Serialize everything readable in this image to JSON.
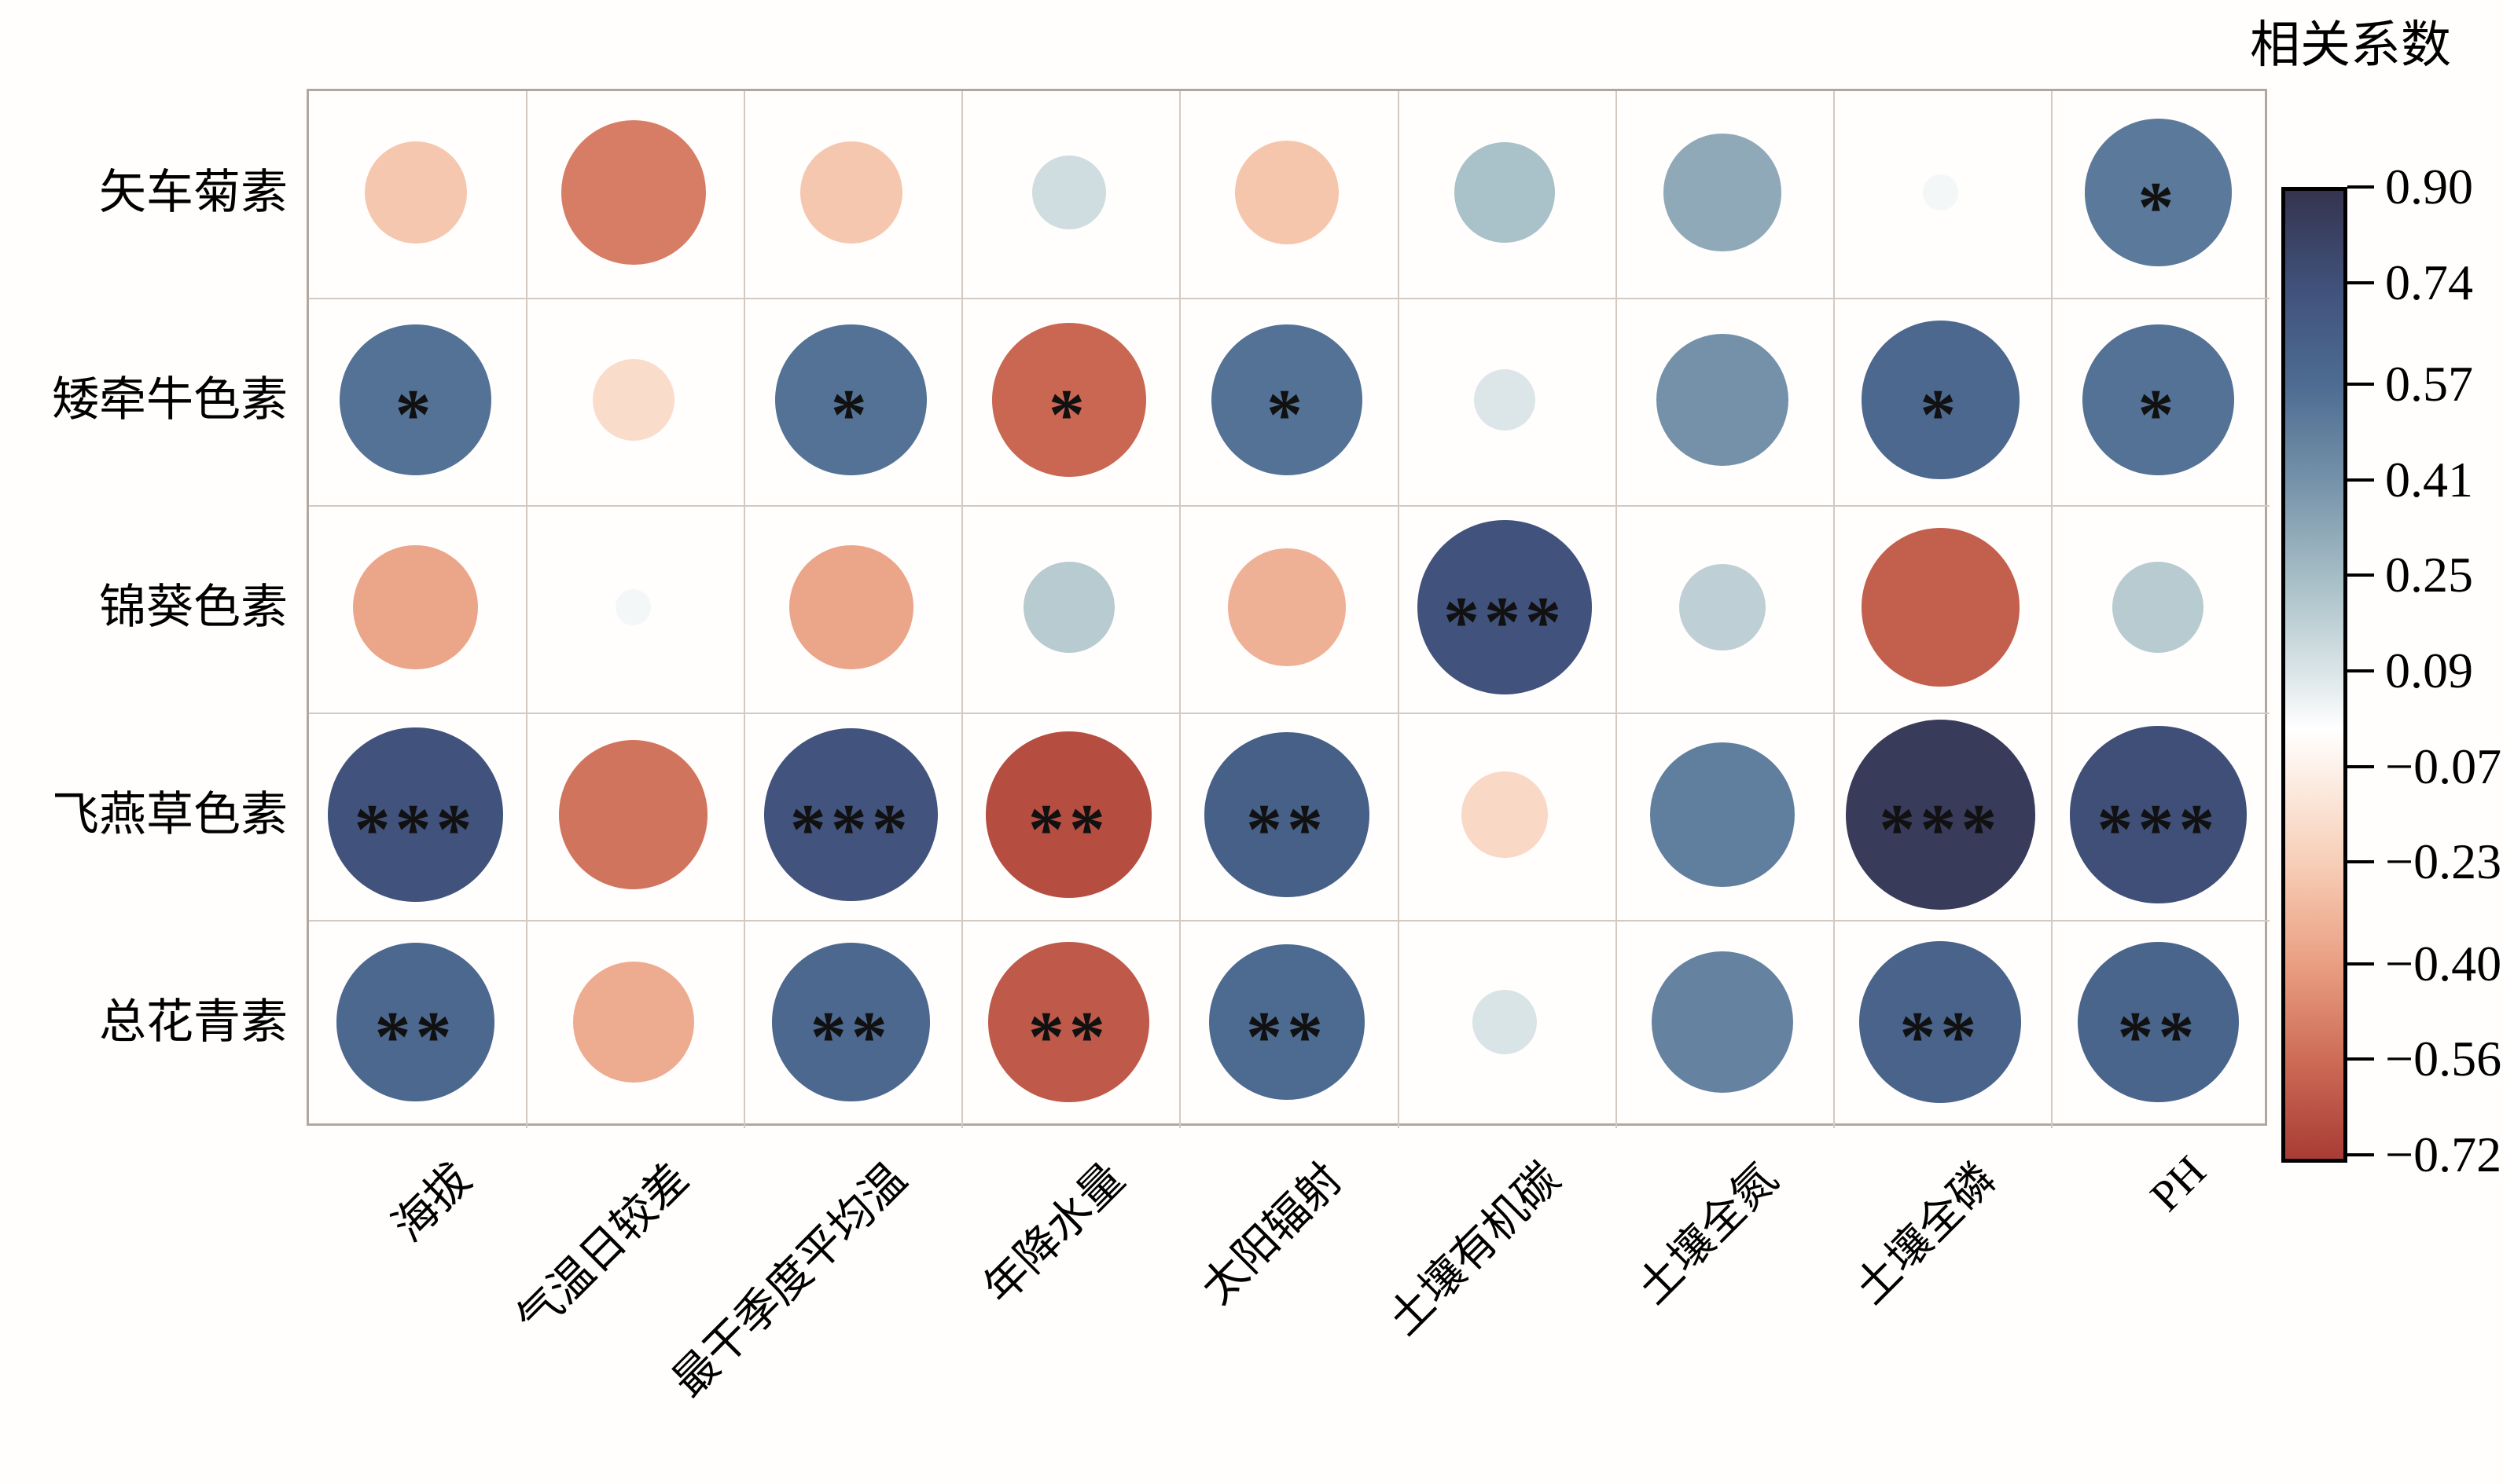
{
  "chart_data": {
    "type": "bubble-correlation-matrix",
    "title": "",
    "rows": [
      "矢车菊素",
      "矮牵牛色素",
      "锦葵色素",
      "飞燕草色素",
      "总花青素"
    ],
    "columns": [
      "海拔",
      "气温日较差",
      "最干季度平均温",
      "年降水量",
      "太阳辐射",
      "土壤有机碳",
      "土壤全氮",
      "土壤全磷",
      "PH"
    ],
    "values": [
      [
        -0.25,
        -0.5,
        -0.25,
        0.13,
        -0.26,
        0.24,
        0.33,
        0.03,
        0.52
      ],
      [
        0.55,
        -0.16,
        0.55,
        -0.57,
        0.55,
        0.09,
        0.42,
        0.6,
        0.55
      ],
      [
        -0.37,
        0.03,
        -0.37,
        0.2,
        -0.33,
        0.73,
        0.18,
        -0.6,
        0.2
      ],
      [
        0.73,
        -0.53,
        0.72,
        -0.66,
        0.65,
        -0.18,
        0.5,
        0.86,
        0.75
      ],
      [
        0.6,
        -0.35,
        0.6,
        -0.62,
        0.58,
        0.1,
        0.48,
        0.63,
        0.62
      ]
    ],
    "significance": [
      [
        "",
        "",
        "",
        "",
        "",
        "",
        "",
        "",
        "*"
      ],
      [
        "*",
        "",
        "*",
        "*",
        "*",
        "",
        "",
        "*",
        "*"
      ],
      [
        "",
        "",
        "",
        "",
        "",
        "***",
        "",
        "",
        ""
      ],
      [
        "***",
        "",
        "***",
        "**",
        "**",
        "",
        "",
        "***",
        "***"
      ],
      [
        "**",
        "",
        "**",
        "**",
        "**",
        "",
        "",
        "**",
        "**"
      ]
    ],
    "size_encoding": "circle area proportional to |r|",
    "grid": true,
    "legend_position": "right",
    "colorbar": {
      "title": "相关系数",
      "max": 0.9,
      "min": -0.72,
      "tick_values": [
        0.9,
        0.74,
        0.57,
        0.41,
        0.25,
        0.09,
        -0.07,
        -0.23,
        -0.4,
        -0.56,
        -0.72
      ],
      "tick_labels": [
        "0.90",
        "0.74",
        "0.57",
        "0.41",
        "0.25",
        "0.09",
        "−0.07",
        "−0.23",
        "−0.40",
        "−0.56",
        "−0.72"
      ],
      "gradient_stops": [
        {
          "value": 0.9,
          "color": "#35344e"
        },
        {
          "value": 0.74,
          "color": "#40517b"
        },
        {
          "value": 0.57,
          "color": "#4e6d92"
        },
        {
          "value": 0.41,
          "color": "#7793aa"
        },
        {
          "value": 0.25,
          "color": "#a6bec6"
        },
        {
          "value": 0.09,
          "color": "#dce6e9"
        },
        {
          "value": 0.0,
          "color": "#ffffff"
        },
        {
          "value": -0.07,
          "color": "#fdf0e8"
        },
        {
          "value": -0.23,
          "color": "#f7cdb5"
        },
        {
          "value": -0.4,
          "color": "#e99d80"
        },
        {
          "value": -0.56,
          "color": "#cc6a55"
        },
        {
          "value": -0.72,
          "color": "#a83c35"
        }
      ]
    }
  }
}
